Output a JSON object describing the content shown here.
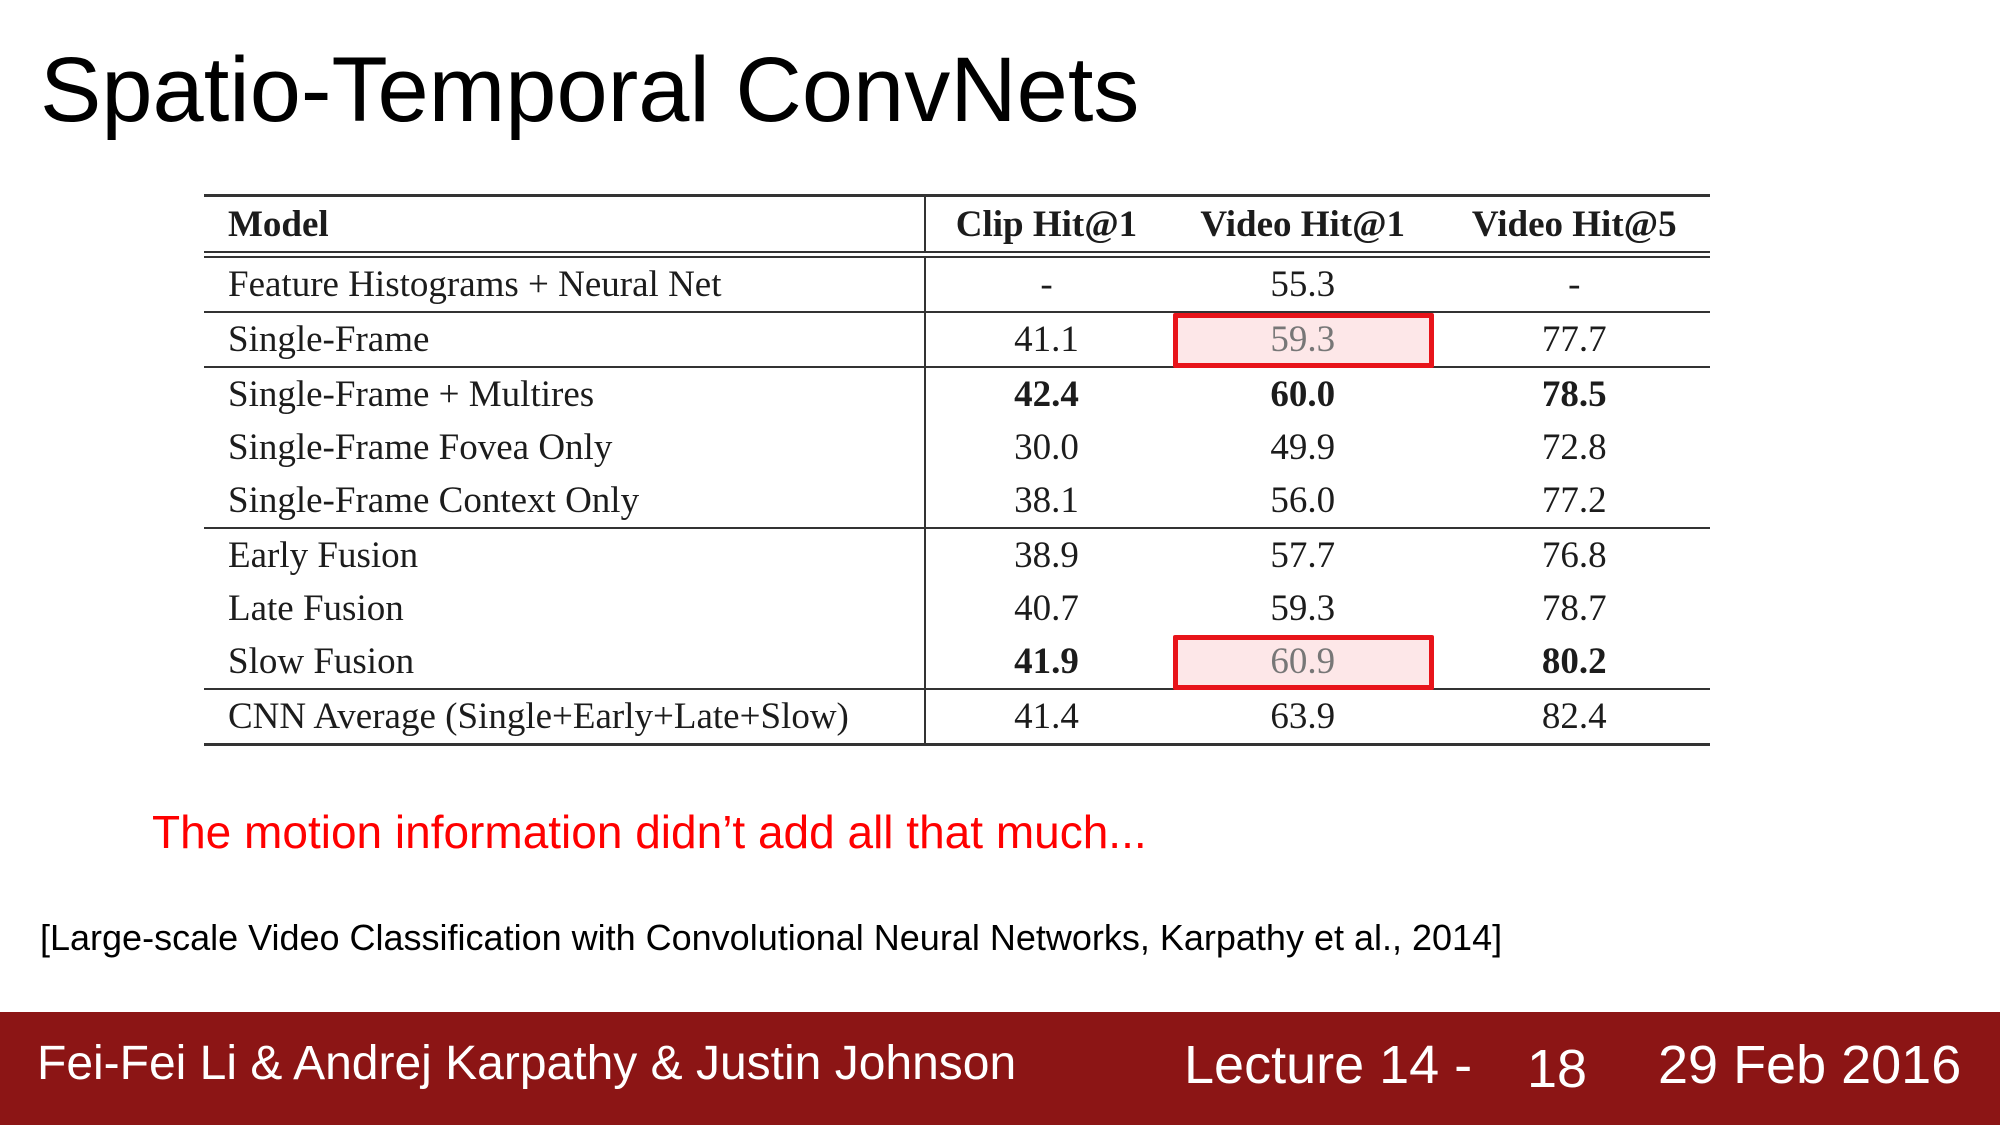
{
  "title": "Spatio-Temporal ConvNets",
  "table": {
    "headers": [
      "Model",
      "Clip Hit@1",
      "Video Hit@1",
      "Video Hit@5"
    ],
    "rows": [
      {
        "model": "Feature Histograms + Neural Net",
        "clip_hit1": "-",
        "video_hit1": "55.3",
        "video_hit5": "-"
      },
      {
        "model": "Single-Frame",
        "clip_hit1": "41.1",
        "video_hit1": "59.3",
        "video_hit5": "77.7"
      },
      {
        "model": "Single-Frame + Multires",
        "clip_hit1": "42.4",
        "video_hit1": "60.0",
        "video_hit5": "78.5"
      },
      {
        "model": "Single-Frame Fovea Only",
        "clip_hit1": "30.0",
        "video_hit1": "49.9",
        "video_hit5": "72.8"
      },
      {
        "model": "Single-Frame Context Only",
        "clip_hit1": "38.1",
        "video_hit1": "56.0",
        "video_hit5": "77.2"
      },
      {
        "model": "Early Fusion",
        "clip_hit1": "38.9",
        "video_hit1": "57.7",
        "video_hit5": "76.8"
      },
      {
        "model": "Late Fusion",
        "clip_hit1": "40.7",
        "video_hit1": "59.3",
        "video_hit5": "78.7"
      },
      {
        "model": "Slow Fusion",
        "clip_hit1": "41.9",
        "video_hit1": "60.9",
        "video_hit5": "80.2"
      },
      {
        "model": "CNN Average (Single+Early+Late+Slow)",
        "clip_hit1": "41.4",
        "video_hit1": "63.9",
        "video_hit5": "82.4"
      }
    ]
  },
  "highlight_color": "#e8141a",
  "caption": "The motion information didn’t add all that much...",
  "caption_color": "#ff0000",
  "citation": "[Large-scale Video Classification with Convolutional Neural Networks, Karpathy et al., 2014]",
  "footer": {
    "authors": "Fei-Fei Li & Andrej Karpathy & Justin Johnson",
    "lecture": "Lecture 14 -",
    "page": "18",
    "date": "29 Feb 2016",
    "background": "#8c1515"
  }
}
